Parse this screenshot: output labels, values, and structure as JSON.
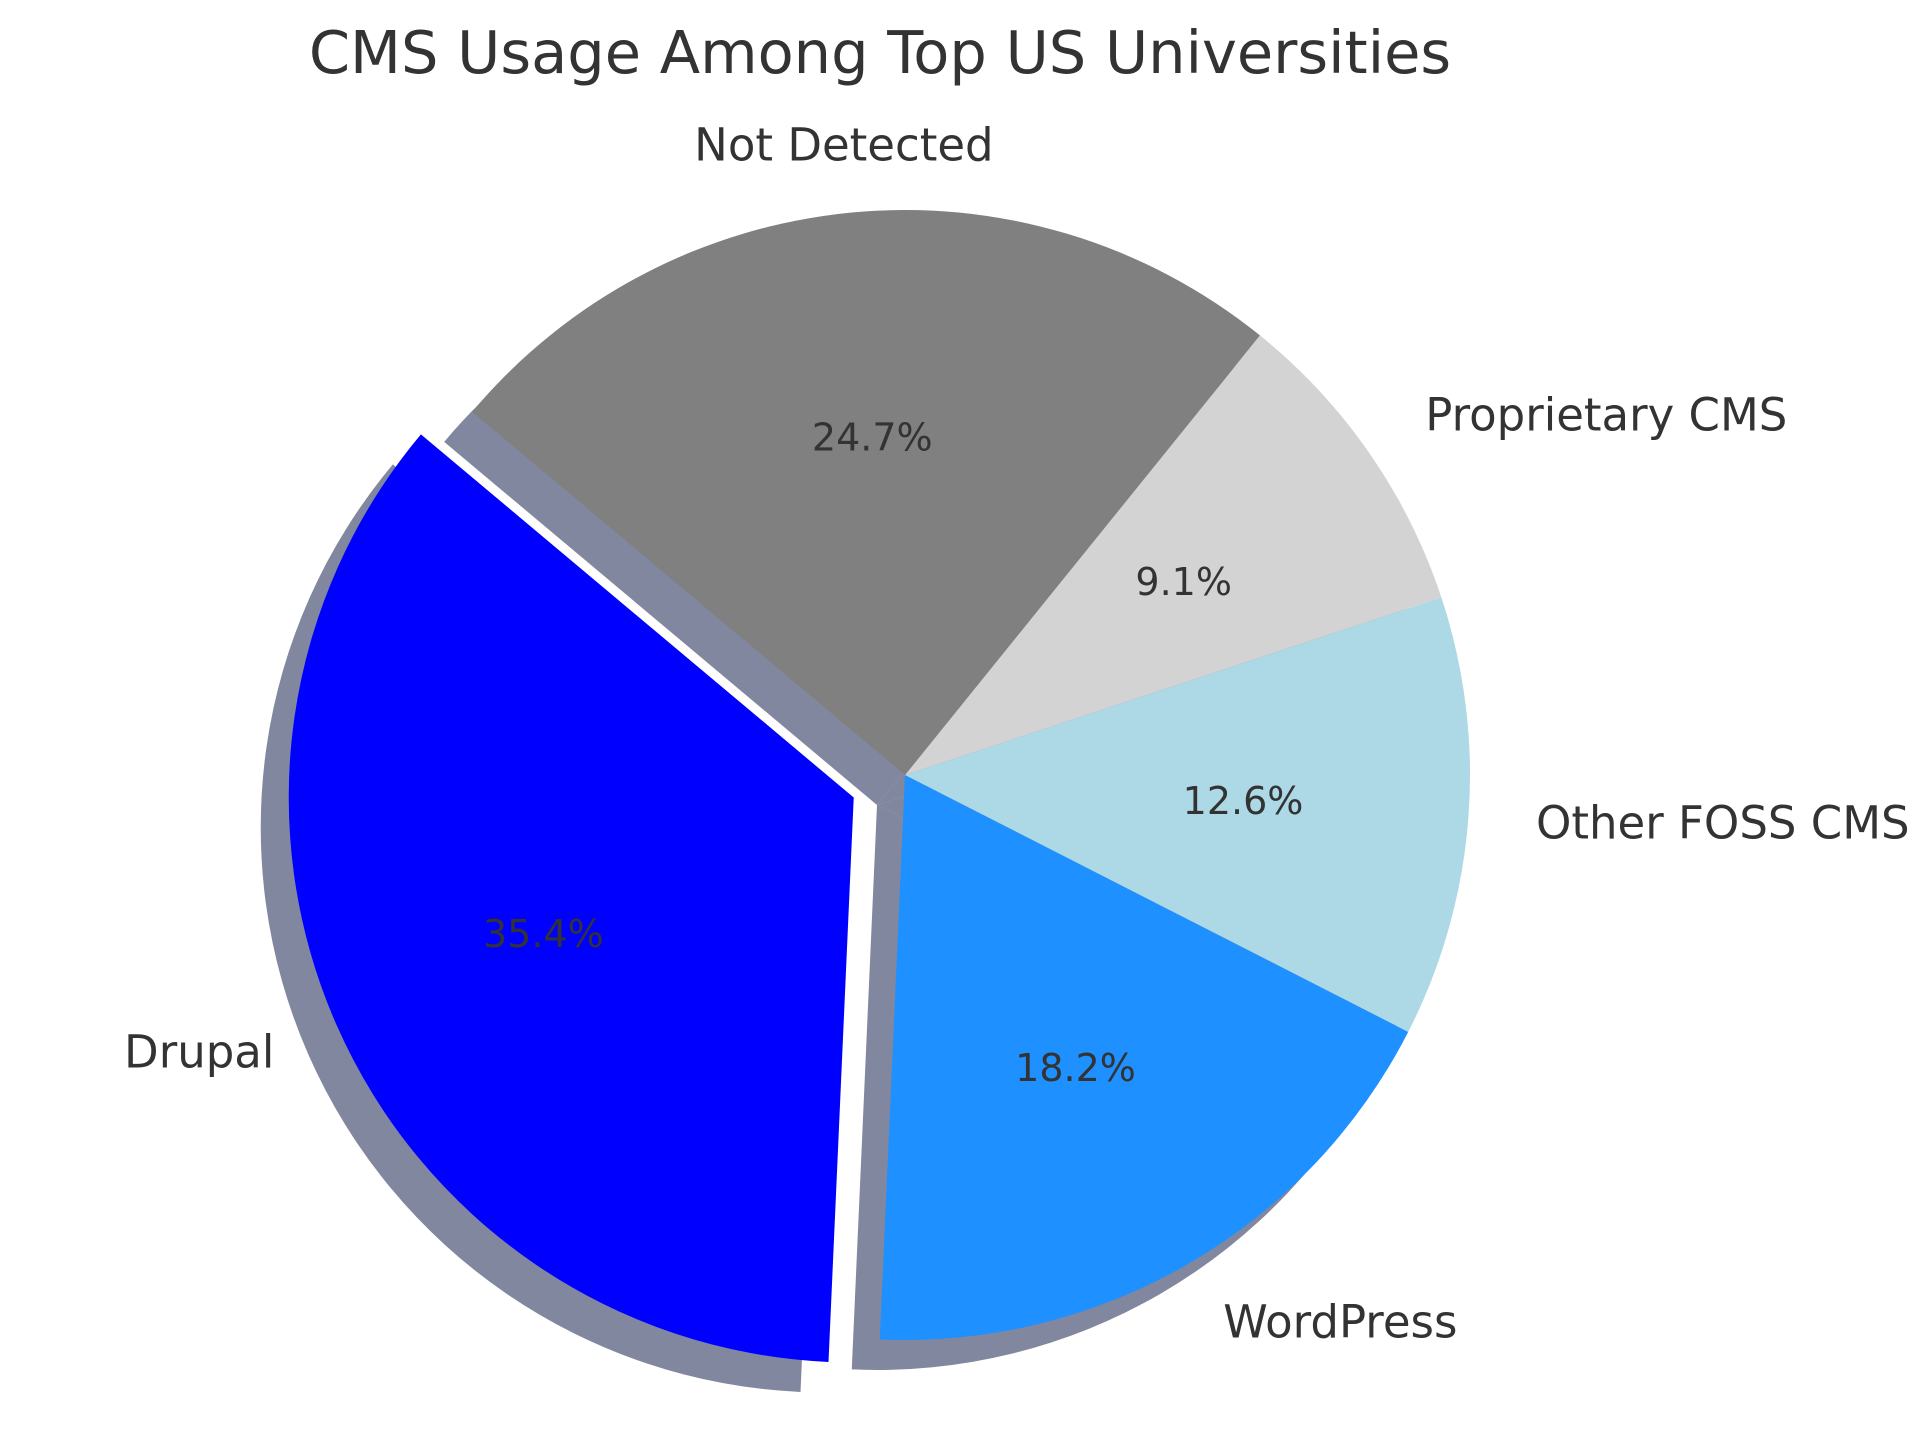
{
  "chart_data": {
    "type": "pie",
    "title": "CMS Usage Among Top US Universities",
    "categories": [
      "Drupal",
      "WordPress",
      "Other FOSS CMS",
      "Proprietary CMS",
      "Not Detected"
    ],
    "values": [
      35.4,
      18.2,
      12.6,
      9.1,
      24.7
    ],
    "value_labels": [
      "35.4%",
      "18.2%",
      "12.6%",
      "9.1%",
      "24.7%"
    ],
    "colors": [
      "#0000ff",
      "#1e90ff",
      "#add8e6",
      "#d3d3d3",
      "#808080"
    ],
    "exploded": [
      "Drupal"
    ],
    "shadow": true,
    "start_angle_degrees": 140,
    "direction": "counterclockwise",
    "legend": "none"
  }
}
